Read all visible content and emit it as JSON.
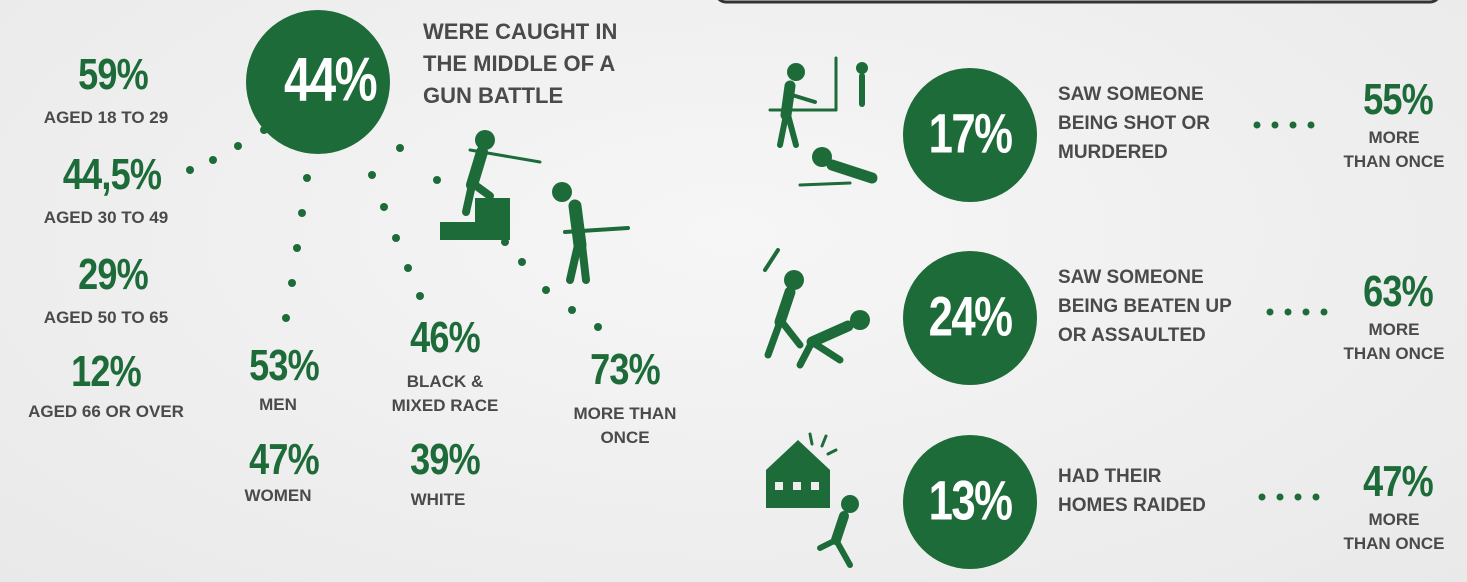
{
  "left": {
    "main": {
      "value": "44%",
      "label": [
        "WERE CAUGHT IN",
        "THE MIDDLE OF A",
        "GUN BATTLE"
      ]
    },
    "age": [
      {
        "value": "59%",
        "label": "AGED 18 TO 29"
      },
      {
        "value": "44,5%",
        "label": "AGED 30 TO 49"
      },
      {
        "value": "29%",
        "label": "AGED 50 TO 65"
      },
      {
        "value": "12%",
        "label": "AGED 66 OR OVER"
      }
    ],
    "gender": [
      {
        "value": "53%",
        "label": "MEN"
      },
      {
        "value": "47%",
        "label": "WOMEN"
      }
    ],
    "race": [
      {
        "value": "46%",
        "label": [
          "BLACK &",
          "MIXED RACE"
        ]
      },
      {
        "value": "39%",
        "label": [
          "WHITE"
        ]
      }
    ],
    "repeat": {
      "value": "73%",
      "label": [
        "MORE THAN",
        "ONCE"
      ]
    }
  },
  "right": [
    {
      "value": "17%",
      "label": [
        "SAW SOMEONE",
        "BEING SHOT OR",
        "MURDERED"
      ],
      "repeat_value": "55%",
      "repeat_label": [
        "MORE",
        "THAN ONCE"
      ]
    },
    {
      "value": "24%",
      "label": [
        "SAW SOMEONE",
        "BEING BEATEN UP",
        "OR ASSAULTED"
      ],
      "repeat_value": "63%",
      "repeat_label": [
        "MORE",
        "THAN ONCE"
      ]
    },
    {
      "value": "13%",
      "label": [
        "HAD THEIR",
        "HOMES RAIDED"
      ],
      "repeat_value": "47%",
      "repeat_label": [
        "MORE",
        "THAN ONCE"
      ]
    }
  ]
}
